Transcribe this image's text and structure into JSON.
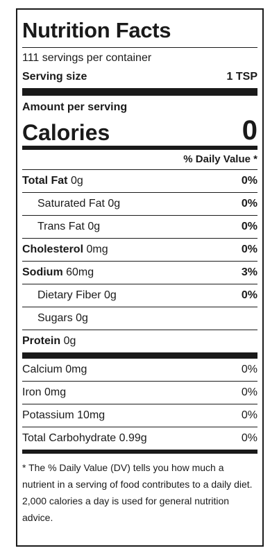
{
  "title": "Nutrition Facts",
  "servings_per_container": "111 servings per container",
  "serving_size": {
    "label": "Serving size",
    "value": "1 TSP"
  },
  "amount_per_serving": "Amount per serving",
  "calories": {
    "label": "Calories",
    "value": "0"
  },
  "daily_value_header": "% Daily Value *",
  "nutrients": [
    {
      "name": "Total Fat",
      "amount": "0g",
      "dv": "0%"
    },
    {
      "name": "Saturated Fat",
      "amount": "0g",
      "dv": "0%"
    },
    {
      "name": "Trans Fat",
      "amount": "0g",
      "dv": "0%"
    },
    {
      "name": "Cholesterol",
      "amount": "0mg",
      "dv": "0%"
    },
    {
      "name": "Sodium",
      "amount": "60mg",
      "dv": "3%"
    },
    {
      "name": "Dietary Fiber",
      "amount": "0g",
      "dv": "0%"
    },
    {
      "name": "Sugars",
      "amount": "0g",
      "dv": ""
    },
    {
      "name": "Protein",
      "amount": "0g",
      "dv": ""
    }
  ],
  "minerals": [
    {
      "text": "Calcium 0mg",
      "dv": "0%"
    },
    {
      "text": "Iron 0mg",
      "dv": "0%"
    },
    {
      "text": "Potassium 10mg",
      "dv": "0%"
    },
    {
      "text": "Total Carbohydrate 0.99g",
      "dv": "0%"
    }
  ],
  "footnote": "* The % Daily Value (DV) tells you how much a nutrient in a serving of food contributes to a daily diet. 2,000 calories a day is used for general nutrition advice."
}
